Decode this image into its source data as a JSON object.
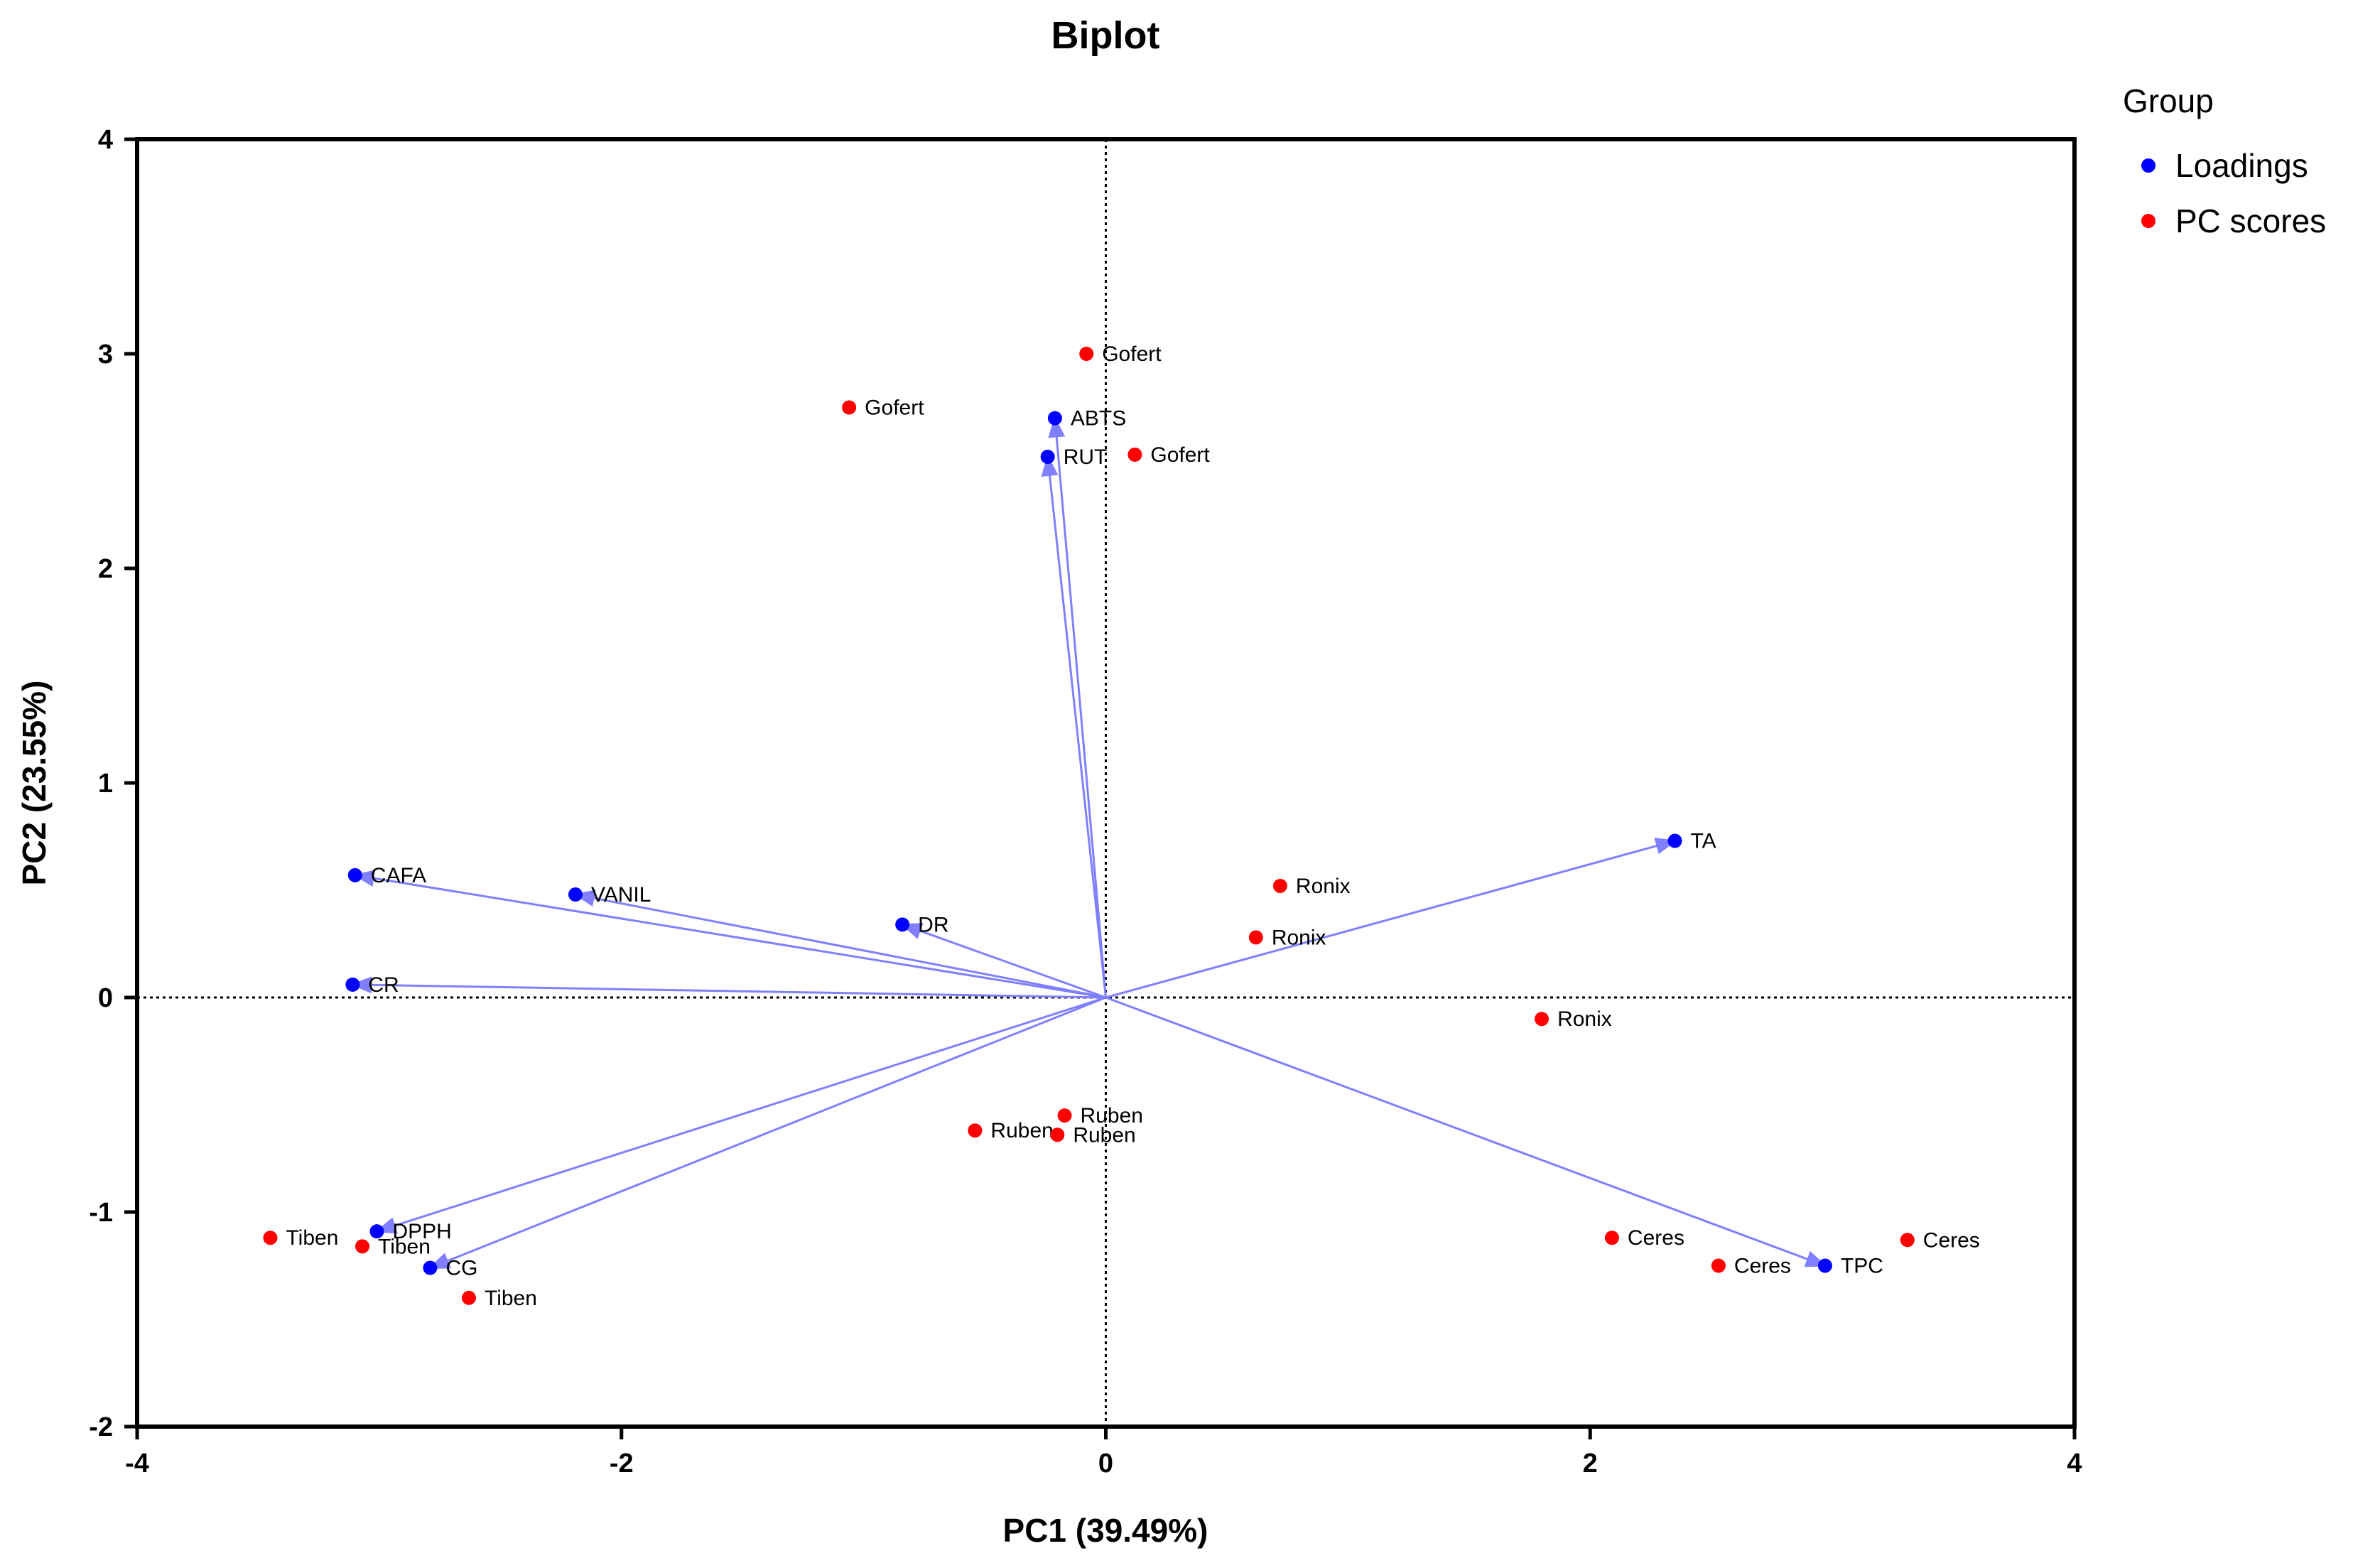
{
  "chart_data": {
    "type": "scatter",
    "title": "Biplot",
    "xlabel": "PC1 (39.49%)",
    "ylabel": "PC2 (23.55%)",
    "xlim": [
      -4,
      4
    ],
    "ylim": [
      -2,
      4
    ],
    "xticks": [
      -4,
      -2,
      0,
      2,
      4
    ],
    "yticks": [
      -2,
      -1,
      0,
      1,
      2,
      3,
      4
    ],
    "xtick_labels": [
      "-4",
      "-2",
      "0",
      "2",
      "4"
    ],
    "ytick_labels": [
      "-2",
      "-1",
      "0",
      "1",
      "2",
      "3",
      "4"
    ],
    "reference_lines": {
      "x": 0,
      "y": 0,
      "style": "dotted"
    },
    "legend": {
      "title": "Group",
      "position": "right",
      "entries": [
        {
          "label": "Loadings",
          "color": "#0000ff"
        },
        {
          "label": "PC scores",
          "color": "#ff0000"
        }
      ]
    },
    "arrow_color": "#8080ff",
    "series": [
      {
        "name": "Loadings",
        "color": "#0000ff",
        "draw_arrows": true,
        "points": [
          {
            "label": "ABTS",
            "x": -0.21,
            "y": 2.7
          },
          {
            "label": "RUT",
            "x": -0.24,
            "y": 2.52
          },
          {
            "label": "TA",
            "x": 2.35,
            "y": 0.73
          },
          {
            "label": "CAFA",
            "x": -3.1,
            "y": 0.57
          },
          {
            "label": "VANIL",
            "x": -2.19,
            "y": 0.48
          },
          {
            "label": "DR",
            "x": -0.84,
            "y": 0.34
          },
          {
            "label": "CR",
            "x": -3.11,
            "y": 0.06
          },
          {
            "label": "DPPH",
            "x": -3.01,
            "y": -1.09
          },
          {
            "label": "CG",
            "x": -2.79,
            "y": -1.26
          },
          {
            "label": "TPC",
            "x": 2.97,
            "y": -1.25
          }
        ]
      },
      {
        "name": "PC scores",
        "color": "#ff0000",
        "draw_arrows": false,
        "points": [
          {
            "label": "Gofert",
            "x": -0.08,
            "y": 3.0
          },
          {
            "label": "Gofert",
            "x": -1.06,
            "y": 2.75
          },
          {
            "label": "Gofert",
            "x": 0.12,
            "y": 2.53
          },
          {
            "label": "Ronix",
            "x": 0.72,
            "y": 0.52
          },
          {
            "label": "Ronix",
            "x": 0.62,
            "y": 0.28
          },
          {
            "label": "Ronix",
            "x": 1.8,
            "y": -0.1
          },
          {
            "label": "Ruben",
            "x": -0.17,
            "y": -0.55
          },
          {
            "label": "Ruben",
            "x": -0.54,
            "y": -0.62
          },
          {
            "label": "Ruben",
            "x": -0.2,
            "y": -0.64
          },
          {
            "label": "Tiben",
            "x": -3.45,
            "y": -1.12
          },
          {
            "label": "Tiben",
            "x": -3.07,
            "y": -1.16
          },
          {
            "label": "Tiben",
            "x": -2.63,
            "y": -1.4
          },
          {
            "label": "Ceres",
            "x": 2.09,
            "y": -1.12
          },
          {
            "label": "Ceres",
            "x": 3.31,
            "y": -1.13
          },
          {
            "label": "Ceres",
            "x": 2.53,
            "y": -1.25
          }
        ]
      }
    ]
  }
}
